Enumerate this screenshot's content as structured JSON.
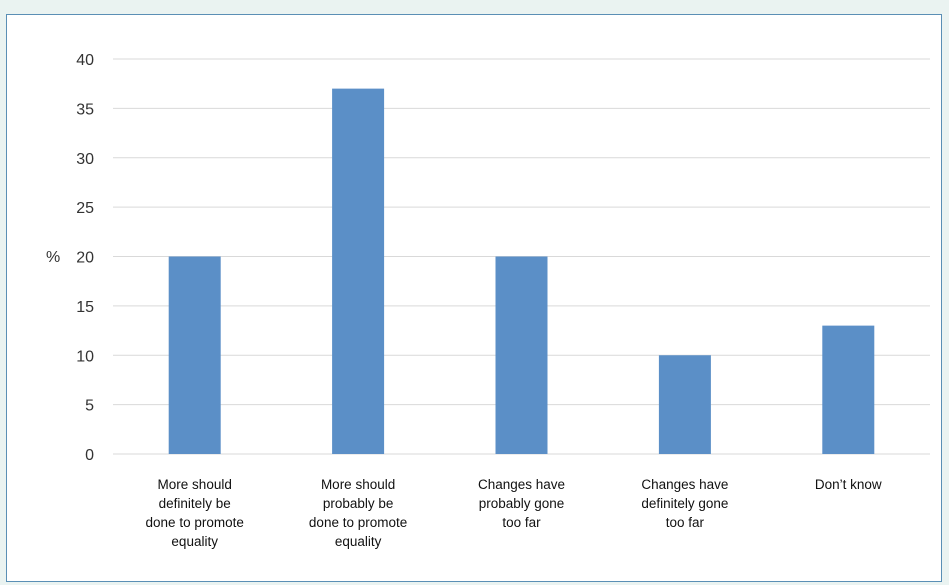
{
  "chart_data": {
    "type": "bar",
    "categories": [
      [
        "More should",
        "definitely be",
        "done to promote",
        "equality"
      ],
      [
        "More should",
        "probably be",
        "done to promote",
        "equality"
      ],
      [
        "Changes have",
        "probably gone",
        "too far"
      ],
      [
        "Changes have",
        "definitely gone",
        "too far"
      ],
      [
        "Don’t know"
      ]
    ],
    "values": [
      20,
      37,
      20,
      10,
      13
    ],
    "ylabel": "%",
    "ylim": [
      0,
      40
    ],
    "yticks": [
      0,
      5,
      10,
      15,
      20,
      25,
      30,
      35,
      40
    ],
    "grid": true,
    "colors": {
      "bar": "#5b8fc7",
      "grid": "#d9d9d9",
      "frame_border": "#5a8fb5",
      "page_background": "#eaf3f1"
    }
  }
}
